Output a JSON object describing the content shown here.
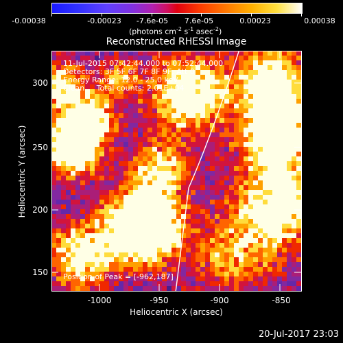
{
  "colorbar": {
    "tick_labels": [
      "-0.00038",
      "-0.00023",
      "-7.6e-05",
      "7.6e-05",
      "0.00023",
      "0.00038"
    ],
    "units": "(photons cm",
    "units_sup1": "-2",
    "units_mid": " s",
    "units_sup2": "-1",
    "units_end": " asec",
    "units_sup3": "-2",
    "units_close": ")"
  },
  "title": "Reconstructed RHESSI Image",
  "info": {
    "line1": "11-Jul-2015 07:42:44.000 to 07:52:44.000",
    "line2": "Detectors: 3F 5F 6F 7F 8F 9F, Att 0",
    "line3": "Energy Range: 12.0 - 25.0 keV",
    "line4": "Clean     Total counts: 2.01E+04",
    "peak": "Position of Peak = [-962,187]"
  },
  "axes": {
    "xlabel": "Heliocentric X (arcsec)",
    "ylabel": "Heliocentric Y (arcsec)",
    "xticks": [
      "-1000",
      "-950",
      "-900",
      "-850"
    ],
    "yticks": [
      "300",
      "250",
      "200",
      "150"
    ]
  },
  "timestamp": "20-Jul-2017 23:03"
}
